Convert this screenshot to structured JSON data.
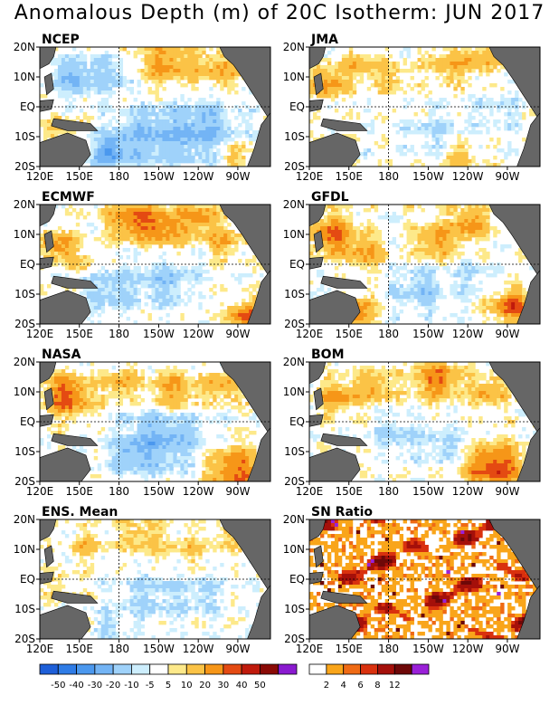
{
  "title": "Anomalous Depth (m) of 20C Isotherm: JUN 2017",
  "chart_data": [
    {
      "type": "heatmap",
      "panel": "NCEP",
      "x_ticks": [
        "120E",
        "150E",
        "180",
        "150W",
        "120W",
        "90W"
      ],
      "y_ticks": [
        "20N",
        "10N",
        "EQ",
        "10S",
        "20S"
      ],
      "pattern": "mostly negative (blue) in central-east basin, positive near 160W-110W north of equator"
    },
    {
      "type": "heatmap",
      "panel": "JMA",
      "x_ticks": [
        "120E",
        "150E",
        "180",
        "150W",
        "120W",
        "90W"
      ],
      "y_ticks": [
        "20N",
        "10N",
        "EQ",
        "10S",
        "20S"
      ],
      "pattern": "positive in west and north, weak negative south-central"
    },
    {
      "type": "heatmap",
      "panel": "ECMWF",
      "x_ticks": [
        "120E",
        "150E",
        "180",
        "150W",
        "120W",
        "90W"
      ],
      "y_ticks": [
        "20N",
        "10N",
        "EQ",
        "10S",
        "20S"
      ],
      "pattern": "strong positive 10N band, negative south of equator"
    },
    {
      "type": "heatmap",
      "panel": "GFDL",
      "x_ticks": [
        "120E",
        "150E",
        "180",
        "150W",
        "120W",
        "90W"
      ],
      "y_ticks": [
        "20N",
        "10N",
        "EQ",
        "10S",
        "20S"
      ],
      "pattern": "positive west and north, mixed south"
    },
    {
      "type": "heatmap",
      "panel": "NASA",
      "x_ticks": [
        "120E",
        "150E",
        "180",
        "150W",
        "120W",
        "90W"
      ],
      "y_ticks": [
        "20N",
        "10N",
        "EQ",
        "10S",
        "20S"
      ],
      "pattern": "positive 10N west, negative equatorial band east, positive southeast"
    },
    {
      "type": "heatmap",
      "panel": "BOM",
      "x_ticks": [
        "120E",
        "150E",
        "180",
        "150W",
        "120W",
        "90W"
      ],
      "y_ticks": [
        "20N",
        "10N",
        "EQ",
        "10S",
        "20S"
      ],
      "pattern": "positive northwest and southeast"
    },
    {
      "type": "heatmap",
      "panel": "ENS. Mean",
      "x_ticks": [
        "120E",
        "150E",
        "180",
        "150W",
        "120W",
        "90W"
      ],
      "y_ticks": [
        "20N",
        "10N",
        "EQ",
        "10S",
        "20S"
      ],
      "pattern": "weak positive north, weak negative south-central"
    },
    {
      "type": "heatmap",
      "panel": "SN Ratio",
      "x_ticks": [
        "120E",
        "150E",
        "180",
        "150W",
        "120W",
        "90W"
      ],
      "y_ticks": [
        "20N",
        "10N",
        "EQ",
        "10S",
        "20S"
      ],
      "pattern": "scattered high ratio patches"
    }
  ],
  "colorbar_anom": {
    "labels": [
      "-50",
      "-40",
      "-30",
      "-20",
      "-10",
      "-5",
      "5",
      "10",
      "20",
      "30",
      "40",
      "50"
    ],
    "colors": [
      "#1e5fd8",
      "#2f7ce6",
      "#4b98ee",
      "#73b4f5",
      "#9fd2fa",
      "#cdeefd",
      "#ffffff",
      "#fde98a",
      "#fbc346",
      "#f69618",
      "#e44a12",
      "#c01a0c",
      "#8a0a06",
      "#8a1ad0"
    ]
  },
  "colorbar_sn": {
    "labels": [
      "2",
      "4",
      "6",
      "8",
      "12"
    ],
    "colors": [
      "#ffffff",
      "#f9a51a",
      "#ef6a14",
      "#d9310e",
      "#a5100a",
      "#6e0808",
      "#9a20d8"
    ]
  }
}
